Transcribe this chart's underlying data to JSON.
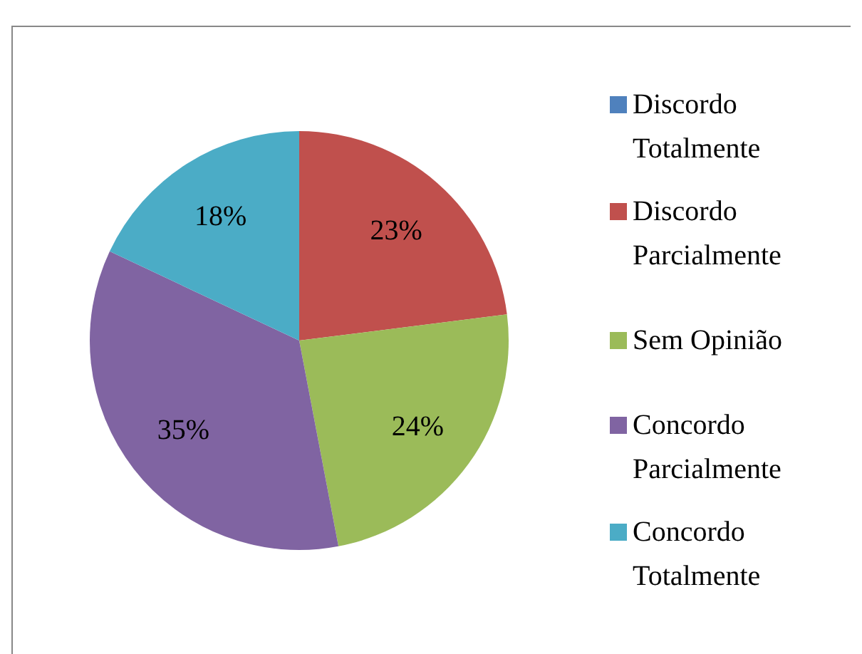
{
  "chart_data": {
    "type": "pie",
    "categories": [
      "Discordo Totalmente",
      "Discordo Parcialmente",
      "Sem Opinião",
      "Concordo Parcialmente",
      "Concordo Totalmente"
    ],
    "values": [
      0,
      23,
      24,
      35,
      18
    ],
    "colors": [
      "#4f81bd",
      "#c0504d",
      "#9bbb59",
      "#8064a2",
      "#4bacc6"
    ],
    "value_labels": [
      null,
      "23%",
      "24%",
      "35%",
      "18%"
    ],
    "legend": "right"
  }
}
